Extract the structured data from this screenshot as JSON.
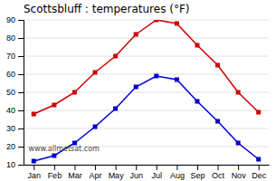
{
  "chart_data": {
    "type": "line",
    "title": "Scottsbluff : temperatures (°F)",
    "categories": [
      "Jan",
      "Feb",
      "Mar",
      "Apr",
      "May",
      "Jun",
      "Jul",
      "Aug",
      "Sep",
      "Oct",
      "Nov",
      "Dec"
    ],
    "series": [
      {
        "color": "#cc0000",
        "marker": "square",
        "line_style": "solid",
        "values": [
          38,
          43,
          50,
          61,
          70,
          82,
          90,
          88,
          76,
          65,
          50,
          39
        ]
      },
      {
        "color": "#0000cc",
        "marker": "square",
        "line_style": "solid",
        "values": [
          12,
          15,
          22,
          31,
          41,
          53,
          59,
          57,
          45,
          34,
          22,
          13
        ]
      }
    ],
    "ylim": [
      10,
      90
    ],
    "yticks": [
      10,
      20,
      30,
      40,
      50,
      60,
      70,
      80,
      90
    ],
    "grid": true,
    "annotation": "www.allmetsat.com"
  }
}
